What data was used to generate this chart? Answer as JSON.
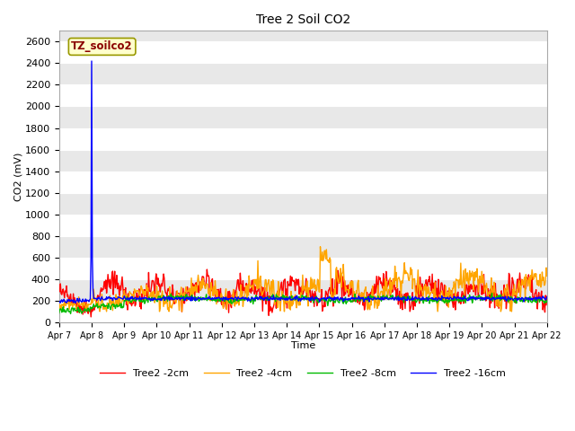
{
  "title": "Tree 2 Soil CO2",
  "xlabel": "Time",
  "ylabel": "CO2 (mV)",
  "ylim": [
    0,
    2700
  ],
  "yticks": [
    0,
    200,
    400,
    600,
    800,
    1000,
    1200,
    1400,
    1600,
    1800,
    2000,
    2200,
    2400,
    2600
  ],
  "annotation_text": "TZ_soilco2",
  "series_colors": [
    "#ff0000",
    "#ffa500",
    "#00bb00",
    "#0000ff"
  ],
  "series_labels": [
    "Tree2 -2cm",
    "Tree2 -4cm",
    "Tree2 -8cm",
    "Tree2 -16cm"
  ],
  "fig_bg_color": "#ffffff",
  "plot_bg_color": "#e8e8e8",
  "grid_color": "#ffffff",
  "x_tick_labels": [
    "Apr 7",
    "Apr 8",
    "Apr 9",
    "Apr 10",
    "Apr 11",
    "Apr 12",
    "Apr 13",
    "Apr 14",
    "Apr 15",
    "Apr 16",
    "Apr 17",
    "Apr 18",
    "Apr 19",
    "Apr 20",
    "Apr 21",
    "Apr 22"
  ],
  "line_width": 1.0
}
